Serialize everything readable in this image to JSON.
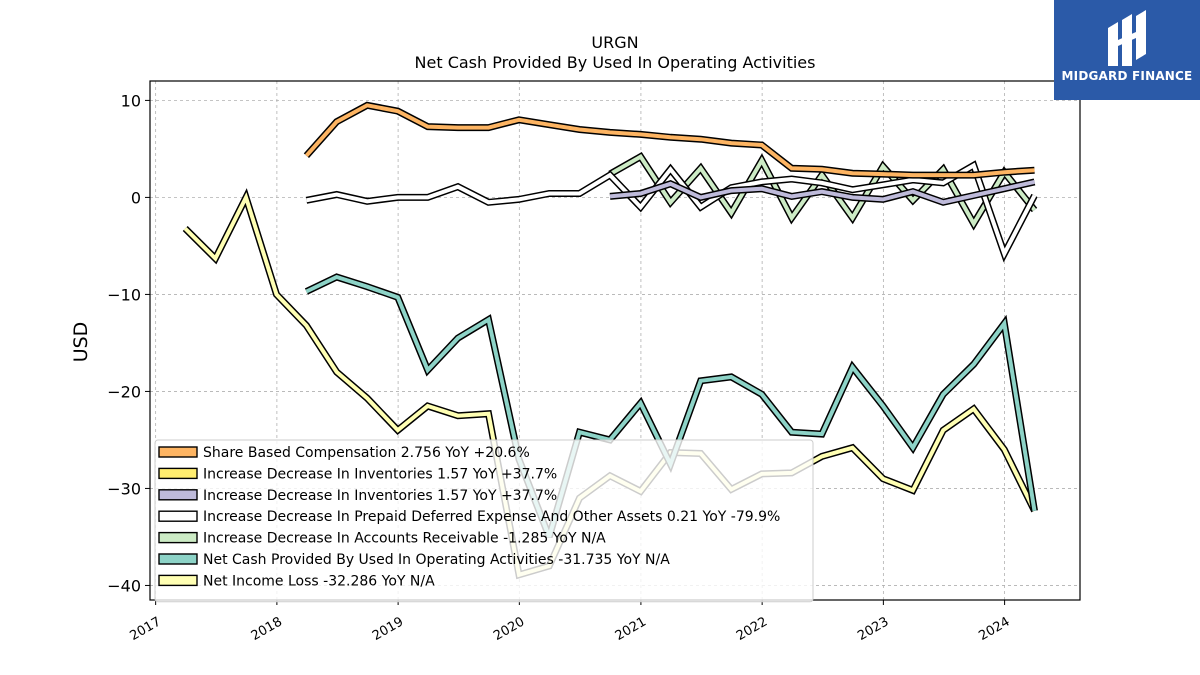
{
  "brand": {
    "name": "MIDGARD FINANCE",
    "logo_icon": "midgard-logo-icon",
    "background": "#2b5aa8"
  },
  "chart_data": {
    "type": "line",
    "title": "URGN",
    "subtitle": "Net Cash Provided By Used In Operating Activities",
    "xlabel": "",
    "ylabel": "USD",
    "ylim": [
      -41.5,
      12
    ],
    "xlim": [
      "2016-12-15",
      "2024-08-15"
    ],
    "yticks": [
      10,
      0,
      -10,
      -20,
      -30,
      -40
    ],
    "ytick_labels": [
      "10",
      "0",
      "−10",
      "−20",
      "−30",
      "−40"
    ],
    "xticks": [
      "2017-01-01",
      "2018-01-01",
      "2019-01-01",
      "2020-01-01",
      "2021-01-01",
      "2022-01-01",
      "2023-01-01",
      "2024-01-01"
    ],
    "xtick_labels": [
      "2017",
      "2018",
      "2019",
      "2020",
      "2021",
      "2022",
      "2023",
      "2024"
    ],
    "grid": true,
    "legend_position": "lower-left",
    "series": [
      {
        "name": "Net Income Loss",
        "legend": "Net Income Loss  -32.286 YoY N/A",
        "color": "#ffffb3",
        "x": [
          "2017-03-31",
          "2017-06-30",
          "2017-09-30",
          "2017-12-31",
          "2018-03-31",
          "2018-06-30",
          "2018-09-30",
          "2018-12-31",
          "2019-03-31",
          "2019-06-30",
          "2019-09-30",
          "2019-12-31",
          "2020-03-31",
          "2020-06-30",
          "2020-09-30",
          "2020-12-31",
          "2021-03-31",
          "2021-06-30",
          "2021-09-30",
          "2021-12-31",
          "2022-03-31",
          "2022-06-30",
          "2022-09-30",
          "2022-12-31",
          "2023-03-31",
          "2023-06-30",
          "2023-09-30",
          "2023-12-31",
          "2024-03-31"
        ],
        "y": [
          -3.2,
          -6.3,
          0.0,
          -10.0,
          -13.2,
          -18.0,
          -20.7,
          -24.0,
          -21.5,
          -22.5,
          -22.3,
          -38.9,
          -38.0,
          -31.0,
          -28.7,
          -30.3,
          -26.3,
          -26.4,
          -30.1,
          -28.5,
          -28.4,
          -26.7,
          -25.8,
          -29.0,
          -30.2,
          -24.0,
          -21.8,
          -26.0,
          -32.3
        ]
      },
      {
        "name": "Net Cash Provided By Used In Operating Activities",
        "legend": "Net Cash Provided By Used In Operating Activities  -31.735 YoY N/A",
        "color": "#8dd3c7",
        "x": [
          "2018-03-31",
          "2018-06-30",
          "2018-09-30",
          "2018-12-31",
          "2019-03-31",
          "2019-06-30",
          "2019-09-30",
          "2019-12-31",
          "2020-03-31",
          "2020-06-30",
          "2020-09-30",
          "2020-12-31",
          "2021-03-31",
          "2021-06-30",
          "2021-09-30",
          "2021-12-31",
          "2022-03-31",
          "2022-06-30",
          "2022-09-30",
          "2022-12-31",
          "2023-03-31",
          "2023-06-30",
          "2023-09-30",
          "2023-12-31",
          "2024-03-31"
        ],
        "y": [
          -9.7,
          -8.2,
          -9.2,
          -10.3,
          -17.8,
          -14.5,
          -12.6,
          -27.0,
          -35.0,
          -24.2,
          -25.0,
          -21.2,
          -27.5,
          -18.9,
          -18.5,
          -20.3,
          -24.2,
          -24.4,
          -17.5,
          -21.5,
          -25.8,
          -20.3,
          -17.2,
          -13.0,
          -32.3
        ]
      },
      {
        "name": "Increase Decrease In Accounts Receivable",
        "legend": "Increase Decrease In Accounts Receivable  -1.285 YoY N/A",
        "color": "#ccebc5",
        "x": [
          "2020-09-30",
          "2020-12-31",
          "2021-03-31",
          "2021-06-30",
          "2021-09-30",
          "2021-12-31",
          "2022-03-31",
          "2022-06-30",
          "2022-09-30",
          "2022-12-31",
          "2023-03-31",
          "2023-06-30",
          "2023-09-30",
          "2023-12-31",
          "2024-03-31"
        ],
        "y": [
          2.4,
          4.2,
          -0.5,
          3.0,
          -1.6,
          3.8,
          -2.1,
          2.3,
          -2.1,
          3.2,
          -0.3,
          2.9,
          -2.7,
          2.6,
          -1.3
        ]
      },
      {
        "name": "Increase Decrease In Prepaid Deferred Expense And Other Assets",
        "legend": "Increase Decrease In Prepaid Deferred Expense And Other Assets  0.21 YoY -79.9%",
        "color": "#ffffff",
        "x": [
          "2018-03-31",
          "2018-06-30",
          "2018-09-30",
          "2018-12-31",
          "2019-03-31",
          "2019-06-30",
          "2019-09-30",
          "2019-12-31",
          "2020-03-31",
          "2020-06-30",
          "2020-09-30",
          "2020-12-31",
          "2021-03-31",
          "2021-06-30",
          "2021-09-30",
          "2021-12-31",
          "2022-03-31",
          "2022-06-30",
          "2022-09-30",
          "2022-12-31",
          "2023-03-31",
          "2023-06-30",
          "2023-09-30",
          "2023-12-31",
          "2024-03-31"
        ],
        "y": [
          -0.3,
          0.3,
          -0.4,
          0.0,
          0.0,
          1.1,
          -0.5,
          -0.2,
          0.4,
          0.4,
          2.3,
          -1.0,
          2.9,
          -1.0,
          1.0,
          1.6,
          1.9,
          1.5,
          0.8,
          1.3,
          1.8,
          1.5,
          3.3,
          -5.8,
          0.2
        ]
      },
      {
        "name": "Increase Decrease In Inventories",
        "legend": "Increase Decrease In Inventories  1.57 YoY +37.7%",
        "color": "#bebada",
        "x": [
          "2020-09-30",
          "2020-12-31",
          "2021-03-31",
          "2021-06-30",
          "2021-09-30",
          "2021-12-31",
          "2022-03-31",
          "2022-06-30",
          "2022-09-30",
          "2022-12-31",
          "2023-03-31",
          "2023-06-30",
          "2023-09-30",
          "2023-12-31",
          "2024-03-31"
        ],
        "y": [
          0.1,
          0.4,
          1.4,
          0.0,
          0.7,
          0.9,
          0.1,
          0.6,
          0.0,
          -0.2,
          0.6,
          -0.5,
          0.2,
          0.9,
          1.6
        ]
      },
      {
        "name": "Increase Decrease In Inventories",
        "legend": "Increase Decrease In Inventories  1.57 YoY +37.7%",
        "color": "#ffed6f",
        "legend_only": true,
        "x": [],
        "y": []
      },
      {
        "name": "Share Based Compensation",
        "legend": "Share Based Compensation  2.756 YoY +20.6%",
        "color": "#fdb462",
        "x": [
          "2018-03-31",
          "2018-06-30",
          "2018-09-30",
          "2018-12-31",
          "2019-03-31",
          "2019-06-30",
          "2019-09-30",
          "2019-12-31",
          "2020-03-31",
          "2020-06-30",
          "2020-09-30",
          "2020-12-31",
          "2021-03-31",
          "2021-06-30",
          "2021-09-30",
          "2021-12-31",
          "2022-03-31",
          "2022-06-30",
          "2022-09-30",
          "2022-12-31",
          "2023-03-31",
          "2023-06-30",
          "2023-09-30",
          "2023-12-31",
          "2024-03-31"
        ],
        "y": [
          4.3,
          7.8,
          9.5,
          8.9,
          7.3,
          7.2,
          7.2,
          8.0,
          7.5,
          7.0,
          6.7,
          6.5,
          6.2,
          6.0,
          5.6,
          5.4,
          3.0,
          2.9,
          2.5,
          2.4,
          2.3,
          2.3,
          2.3,
          2.6,
          2.8
        ]
      }
    ],
    "legend_order": [
      6,
      5,
      4,
      3,
      2,
      1,
      0
    ]
  }
}
